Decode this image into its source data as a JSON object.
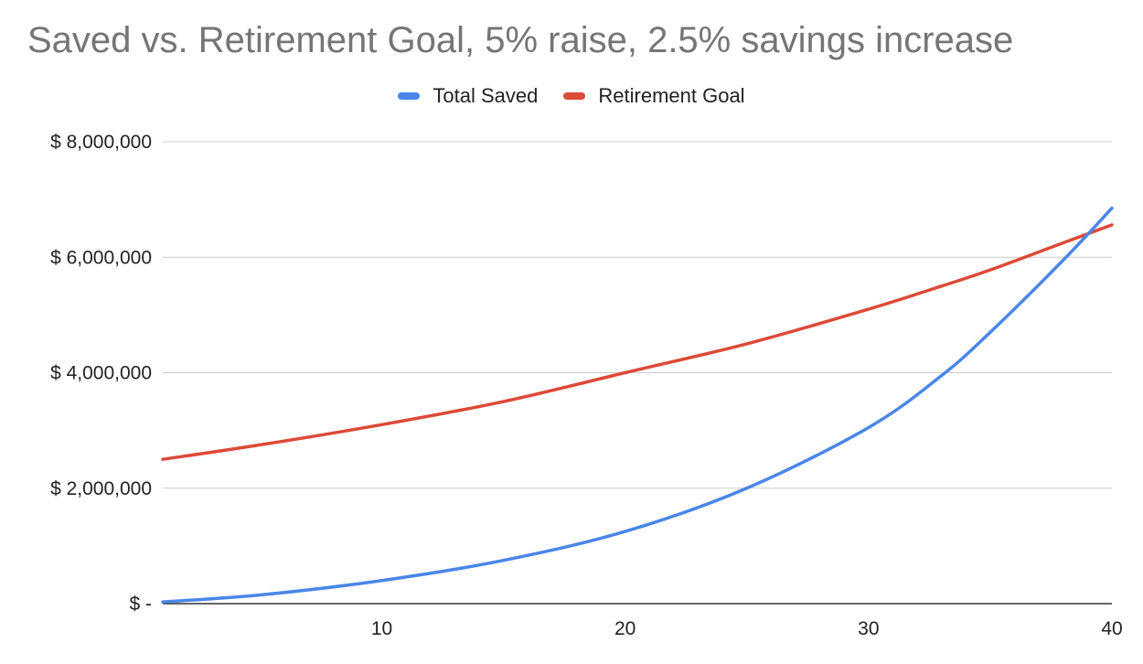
{
  "chart_data": {
    "type": "line",
    "title": "Saved vs. Retirement Goal, 5% raise, 2.5% savings increase",
    "xlabel": "",
    "ylabel": "",
    "xlim": [
      1,
      40
    ],
    "ylim": [
      0,
      8000000
    ],
    "x_ticks": [
      10,
      20,
      30,
      40
    ],
    "x_tick_labels": [
      "10",
      "20",
      "30",
      "40"
    ],
    "y_ticks": [
      0,
      2000000,
      4000000,
      6000000,
      8000000
    ],
    "y_tick_labels": [
      "$ -",
      "$ 2,000,000",
      "$ 4,000,000",
      "$ 6,000,000",
      "$ 8,000,000"
    ],
    "grid": true,
    "legend_position": "top-center",
    "x": [
      1,
      5,
      10,
      15,
      20,
      25,
      30,
      33,
      35,
      38,
      40
    ],
    "series": [
      {
        "name": "Total Saved",
        "color": "#4a86e8",
        "values": [
          30000,
          150000,
          400000,
          750000,
          1250000,
          2000000,
          3050000,
          3950000,
          4700000,
          5950000,
          6850000
        ]
      },
      {
        "name": "Retirement Goal",
        "color": "#dc4a38",
        "values": [
          2500000,
          2750000,
          3100000,
          3500000,
          4000000,
          4500000,
          5100000,
          5500000,
          5780000,
          6250000,
          6560000
        ]
      }
    ]
  }
}
